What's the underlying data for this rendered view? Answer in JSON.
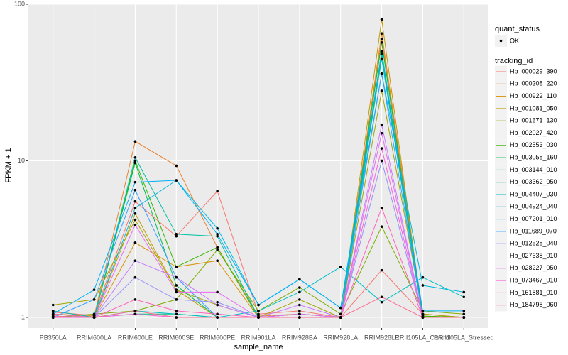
{
  "chart_data": {
    "type": "line",
    "x_label": "sample_name",
    "y_label": "FPKM + 1",
    "log_scale": true,
    "grid": true,
    "ylim": [
      0.855,
      101
    ],
    "yticks": [
      1,
      10,
      100
    ],
    "categories": [
      "PB350LA",
      "RRIM600LA",
      "RRIM600LE",
      "RRIM600SE",
      "RRIM600PE",
      "RRIM901LA",
      "RRIM928BA",
      "RRIM928LA",
      "RRIM928LE",
      "RRII105LA_Control",
      "RRII105LA_Stressed"
    ],
    "point_legend_title": "quant_status",
    "point_legend_label": "OK",
    "point_color": "#000000",
    "legend_title": "tracking_id",
    "series": [
      {
        "name": "Hb_000029_390",
        "color": "#F8766D",
        "values": [
          1.08,
          1.03,
          5.5,
          3.3,
          6.4,
          1.05,
          1.1,
          1.0,
          2.0,
          1.05,
          1.0
        ]
      },
      {
        "name": "Hb_000208_220",
        "color": "#EA8331",
        "values": [
          1.05,
          1.02,
          13.3,
          9.3,
          2.8,
          1.02,
          1.05,
          1.0,
          65,
          1.05,
          1.0
        ]
      },
      {
        "name": "Hb_000922_110",
        "color": "#D89000",
        "values": [
          1.1,
          1.0,
          3.0,
          2.1,
          2.3,
          1.0,
          1.05,
          1.0,
          60,
          1.02,
          1.0
        ]
      },
      {
        "name": "Hb_001081_050",
        "color": "#C09B00",
        "values": [
          1.0,
          1.0,
          4.6,
          1.5,
          1.0,
          1.0,
          1.0,
          1.0,
          80,
          1.0,
          1.0
        ]
      },
      {
        "name": "Hb_001671_130",
        "color": "#A3A500",
        "values": [
          1.2,
          1.3,
          4.2,
          1.5,
          1.2,
          1.0,
          1.3,
          1.0,
          28,
          1.05,
          1.0
        ]
      },
      {
        "name": "Hb_002027_420",
        "color": "#7CAE00",
        "values": [
          1.0,
          1.05,
          1.1,
          1.3,
          2.7,
          1.1,
          1.55,
          1.05,
          3.8,
          1.1,
          1.05
        ]
      },
      {
        "name": "Hb_002553_030",
        "color": "#39B600",
        "values": [
          1.05,
          1.0,
          10.0,
          2.1,
          2.8,
          1.0,
          1.05,
          1.0,
          48,
          1.02,
          1.0
        ]
      },
      {
        "name": "Hb_003058_160",
        "color": "#00BB4E",
        "values": [
          1.0,
          1.0,
          9.7,
          1.6,
          1.0,
          1.0,
          1.0,
          1.0,
          57,
          1.0,
          1.0
        ]
      },
      {
        "name": "Hb_003144_010",
        "color": "#00BF7D",
        "values": [
          1.02,
          1.0,
          1.05,
          1.05,
          1.0,
          1.0,
          1.0,
          1.0,
          50,
          1.0,
          1.0
        ]
      },
      {
        "name": "Hb_003362_050",
        "color": "#00C1A3",
        "values": [
          1.0,
          1.0,
          10.5,
          3.4,
          3.3,
          1.0,
          1.0,
          1.0,
          45,
          1.0,
          1.0
        ]
      },
      {
        "name": "Hb_004407_030",
        "color": "#00BFC4",
        "values": [
          1.1,
          1.0,
          1.1,
          1.05,
          1.0,
          1.1,
          1.45,
          2.1,
          1.25,
          1.8,
          1.35
        ]
      },
      {
        "name": "Hb_004924_040",
        "color": "#00BAE0",
        "values": [
          1.0,
          1.0,
          5.0,
          7.5,
          3.7,
          1.2,
          1.75,
          1.15,
          36,
          1.6,
          1.45
        ]
      },
      {
        "name": "Hb_007201_010",
        "color": "#00B0F6",
        "values": [
          1.05,
          1.5,
          7.3,
          7.5,
          3.4,
          1.2,
          1.75,
          1.15,
          48,
          1.1,
          1.1
        ]
      },
      {
        "name": "Hb_011689_070",
        "color": "#35A2FF",
        "values": [
          1.0,
          1.3,
          6.5,
          1.8,
          1.0,
          1.0,
          1.0,
          1.0,
          36,
          1.0,
          1.0
        ]
      },
      {
        "name": "Hb_012528_040",
        "color": "#9590FF",
        "values": [
          1.0,
          1.0,
          1.8,
          1.3,
          1.25,
          1.0,
          1.05,
          1.0,
          10,
          1.0,
          1.0
        ]
      },
      {
        "name": "Hb_027638_010",
        "color": "#C77CFF",
        "values": [
          1.0,
          1.0,
          2.3,
          1.8,
          1.2,
          1.0,
          1.2,
          1.0,
          17,
          1.0,
          1.0
        ]
      },
      {
        "name": "Hb_028227_050",
        "color": "#E76BF3",
        "values": [
          1.0,
          1.0,
          3.9,
          1.45,
          1.45,
          1.0,
          1.05,
          1.0,
          15,
          1.0,
          1.0
        ]
      },
      {
        "name": "Hb_073467_010",
        "color": "#FA62DB",
        "values": [
          1.0,
          1.0,
          1.05,
          1.0,
          1.0,
          1.0,
          1.0,
          1.0,
          12,
          1.0,
          1.0
        ]
      },
      {
        "name": "Hb_161881_010",
        "color": "#FF62BC",
        "values": [
          1.05,
          1.0,
          1.3,
          1.1,
          1.05,
          1.0,
          1.0,
          1.0,
          5.0,
          1.0,
          1.0
        ]
      },
      {
        "name": "Hb_184798_060",
        "color": "#FF6C91",
        "values": [
          1.02,
          1.0,
          1.1,
          1.0,
          1.0,
          1.0,
          1.0,
          1.0,
          1.35,
          1.0,
          1.0
        ]
      }
    ]
  }
}
